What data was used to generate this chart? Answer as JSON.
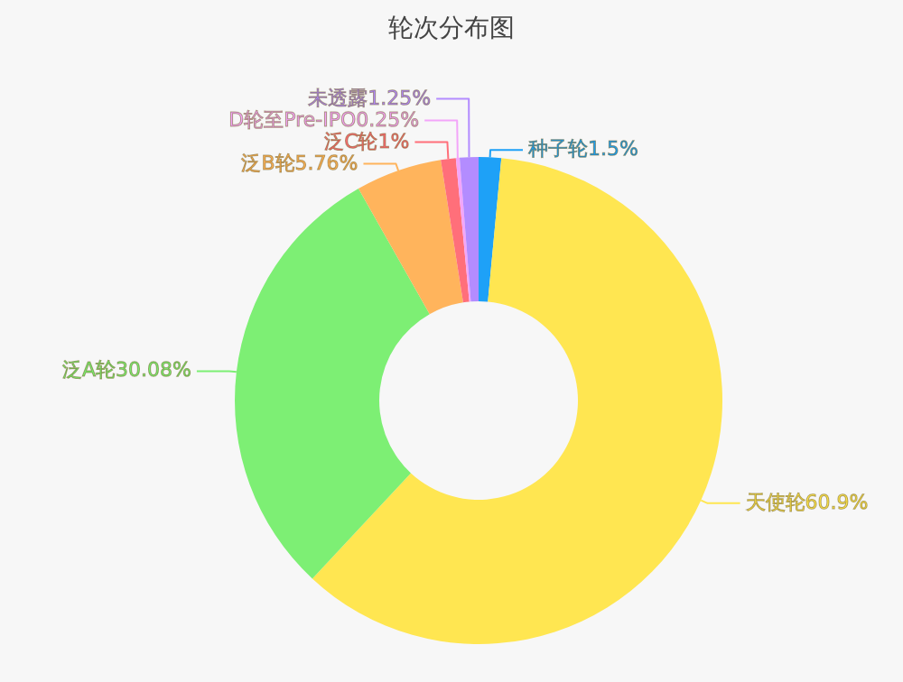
{
  "chart_data": {
    "type": "donut",
    "title": "轮次分布图",
    "categories": [
      "种子轮",
      "天使轮",
      "泛A轮",
      "泛B轮",
      "泛C轮",
      "D轮至Pre-IPO",
      "未透露"
    ],
    "values": [
      1.5,
      60.9,
      30.08,
      5.76,
      1,
      0.25,
      1.25
    ],
    "value_labels": [
      "1.5%",
      "60.9%",
      "30.08%",
      "5.76%",
      "1%",
      "0.25%",
      "1.25%"
    ],
    "colors": [
      "#1ea1f7",
      "#ffe651",
      "#7def74",
      "#ffb45c",
      "#ff6f7a",
      "#f3a5f9",
      "#b38cff"
    ]
  }
}
